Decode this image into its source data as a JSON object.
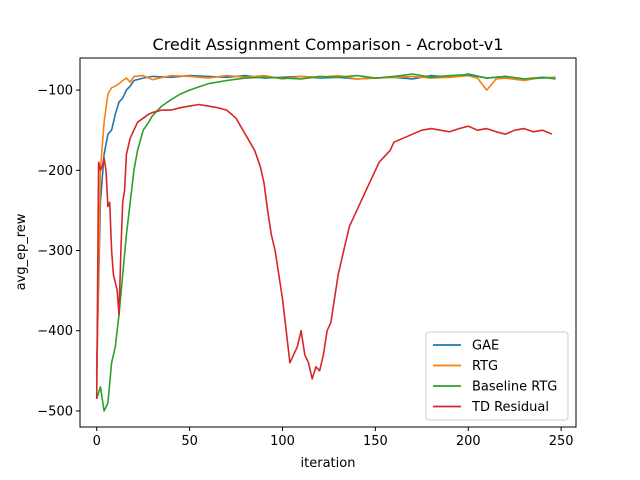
{
  "chart_data": {
    "type": "line",
    "title": "Credit Assignment Comparison - Acrobot-v1",
    "xlabel": "iteration",
    "ylabel": "avg_ep_rew",
    "xlim": [
      -9,
      258
    ],
    "ylim": [
      -520,
      -60
    ],
    "xticks": [
      0,
      50,
      100,
      150,
      200,
      250
    ],
    "yticks": [
      -500,
      -400,
      -300,
      -200,
      -100
    ],
    "grid": false,
    "legend_position": "lower-right",
    "series": [
      {
        "name": "GAE",
        "color": "#1f77b4",
        "x": [
          0,
          2,
          4,
          6,
          8,
          10,
          12,
          14,
          16,
          18,
          20,
          25,
          30,
          40,
          50,
          60,
          70,
          80,
          90,
          100,
          110,
          120,
          130,
          140,
          150,
          160,
          170,
          180,
          190,
          200,
          210,
          220,
          230,
          240,
          247
        ],
        "values": [
          -450,
          -240,
          -180,
          -155,
          -150,
          -130,
          -115,
          -110,
          -100,
          -95,
          -88,
          -85,
          -83,
          -84,
          -82,
          -83,
          -84,
          -82,
          -85,
          -84,
          -83,
          -85,
          -84,
          -86,
          -85,
          -84,
          -86,
          -82,
          -84,
          -80,
          -85,
          -83,
          -86,
          -85,
          -84
        ]
      },
      {
        "name": "RTG",
        "color": "#ff7f0e",
        "x": [
          0,
          2,
          4,
          6,
          8,
          10,
          12,
          14,
          16,
          18,
          20,
          25,
          30,
          40,
          50,
          60,
          70,
          80,
          90,
          100,
          110,
          120,
          130,
          140,
          150,
          160,
          170,
          180,
          190,
          200,
          205,
          210,
          215,
          220,
          230,
          240,
          247
        ],
        "values": [
          -460,
          -200,
          -140,
          -105,
          -97,
          -95,
          -92,
          -88,
          -85,
          -90,
          -83,
          -82,
          -87,
          -82,
          -83,
          -85,
          -82,
          -84,
          -82,
          -86,
          -83,
          -84,
          -82,
          -86,
          -85,
          -84,
          -83,
          -85,
          -84,
          -82,
          -85,
          -100,
          -86,
          -85,
          -88,
          -84,
          -85
        ]
      },
      {
        "name": "Baseline RTG",
        "color": "#2ca02c",
        "x": [
          0,
          2,
          4,
          6,
          8,
          10,
          12,
          14,
          16,
          18,
          20,
          22,
          25,
          28,
          30,
          35,
          40,
          45,
          50,
          55,
          60,
          70,
          80,
          90,
          100,
          110,
          120,
          130,
          140,
          150,
          160,
          170,
          180,
          190,
          200,
          210,
          220,
          230,
          240,
          247
        ],
        "values": [
          -485,
          -470,
          -500,
          -490,
          -440,
          -420,
          -380,
          -330,
          -280,
          -240,
          -200,
          -175,
          -150,
          -140,
          -132,
          -120,
          -112,
          -105,
          -100,
          -96,
          -92,
          -88,
          -85,
          -84,
          -85,
          -86,
          -83,
          -84,
          -82,
          -85,
          -83,
          -80,
          -84,
          -82,
          -81,
          -85,
          -83,
          -86,
          -84,
          -86
        ]
      },
      {
        "name": "TD Residual",
        "color": "#d62728",
        "x": [
          0,
          1,
          2,
          3,
          4,
          5,
          6,
          7,
          8,
          9,
          10,
          11,
          12,
          13,
          14,
          15,
          16,
          18,
          20,
          22,
          25,
          28,
          30,
          35,
          40,
          45,
          50,
          55,
          60,
          65,
          70,
          75,
          80,
          85,
          88,
          90,
          92,
          94,
          96,
          98,
          100,
          102,
          104,
          106,
          108,
          110,
          112,
          114,
          116,
          118,
          120,
          122,
          124,
          126,
          128,
          130,
          132,
          134,
          136,
          138,
          140,
          142,
          144,
          146,
          148,
          150,
          152,
          154,
          156,
          158,
          160,
          165,
          170,
          175,
          180,
          185,
          190,
          195,
          200,
          205,
          210,
          215,
          220,
          225,
          230,
          235,
          240,
          245
        ],
        "values": [
          -485,
          -190,
          -200,
          -195,
          -185,
          -200,
          -245,
          -240,
          -300,
          -330,
          -340,
          -350,
          -380,
          -300,
          -240,
          -225,
          -180,
          -160,
          -150,
          -140,
          -135,
          -130,
          -128,
          -125,
          -125,
          -122,
          -120,
          -118,
          -120,
          -122,
          -125,
          -135,
          -155,
          -175,
          -195,
          -215,
          -250,
          -280,
          -300,
          -330,
          -360,
          -400,
          -440,
          -430,
          -420,
          -400,
          -430,
          -440,
          -460,
          -445,
          -450,
          -430,
          -400,
          -390,
          -360,
          -330,
          -310,
          -290,
          -270,
          -260,
          -250,
          -240,
          -230,
          -220,
          -210,
          -200,
          -190,
          -185,
          -180,
          -175,
          -165,
          -160,
          -155,
          -150,
          -148,
          -150,
          -152,
          -148,
          -145,
          -150,
          -148,
          -152,
          -155,
          -150,
          -148,
          -152,
          -150,
          -155
        ]
      }
    ]
  }
}
